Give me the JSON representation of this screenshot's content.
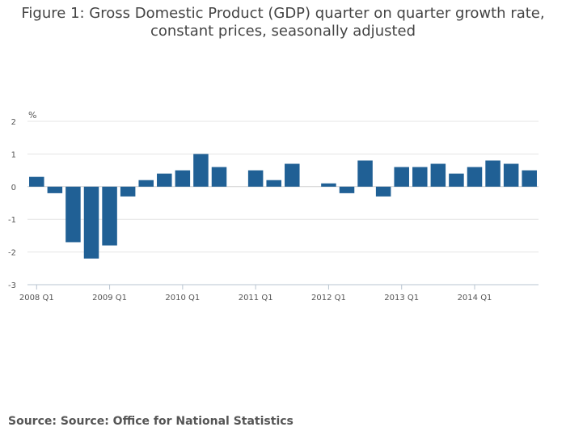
{
  "chart_data": {
    "type": "bar",
    "title_line1": "Figure 1: Gross Domestic Product (GDP) quarter on quarter growth rate,",
    "title_line2": "constant prices, seasonally adjusted",
    "ylabel": "%",
    "xlabel": "",
    "ylim": [
      -3,
      2
    ],
    "yticks": [
      2,
      1,
      0,
      -1,
      -2,
      -3
    ],
    "grid": true,
    "bar_color": "#206095",
    "axis_color": "#cccccc",
    "grid_color": "#e4e4e4",
    "xtick_labels": [
      "2008 Q1",
      "2009 Q1",
      "2010 Q1",
      "2011 Q1",
      "2012 Q1",
      "2013 Q1",
      "2014 Q1"
    ],
    "categories": [
      "2008 Q1",
      "2008 Q2",
      "2008 Q3",
      "2008 Q4",
      "2009 Q1",
      "2009 Q2",
      "2009 Q3",
      "2009 Q4",
      "2010 Q1",
      "2010 Q2",
      "2010 Q3",
      "2010 Q4",
      "2011 Q1",
      "2011 Q2",
      "2011 Q3",
      "2011 Q4",
      "2012 Q1",
      "2012 Q2",
      "2012 Q3",
      "2012 Q4",
      "2013 Q1",
      "2013 Q2",
      "2013 Q3",
      "2013 Q4",
      "2014 Q1",
      "2014 Q2",
      "2014 Q3",
      "2014 Q4"
    ],
    "values": [
      0.3,
      -0.2,
      -1.7,
      -2.2,
      -1.8,
      -0.3,
      0.2,
      0.4,
      0.5,
      1.0,
      0.6,
      0.0,
      0.5,
      0.2,
      0.7,
      0.0,
      0.1,
      -0.2,
      0.8,
      -0.3,
      0.6,
      0.6,
      0.7,
      0.4,
      0.6,
      0.8,
      0.7,
      0.5
    ]
  },
  "source": {
    "text": "Source: Source: Office for National Statistics"
  }
}
